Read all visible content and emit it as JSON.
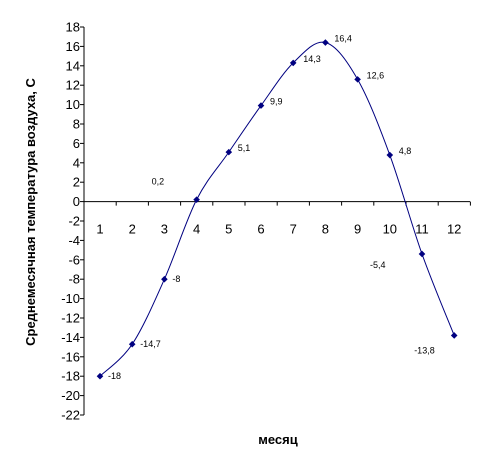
{
  "chart_data": {
    "type": "line",
    "xlabel": "месяц",
    "ylabel": "Среднемесячная температура воздуха, С",
    "x": [
      1,
      2,
      3,
      4,
      5,
      6,
      7,
      8,
      9,
      10,
      11,
      12
    ],
    "values": [
      -18,
      -14.7,
      -8,
      0.2,
      5.1,
      9.9,
      14.3,
      16.4,
      12.6,
      4.8,
      -5.4,
      -13.8
    ],
    "data_labels": [
      "-18",
      "-14,7",
      "-8",
      "0,2",
      "5,1",
      "9,9",
      "14,3",
      "16,4",
      "12,6",
      "4,8",
      "-5,4",
      "-13,8"
    ],
    "ylim": [
      -22,
      18
    ],
    "yticks": [
      18,
      16,
      14,
      12,
      10,
      8,
      6,
      4,
      2,
      0,
      -2,
      -4,
      -6,
      -8,
      -10,
      -12,
      -14,
      -16,
      -18,
      -20,
      -22
    ],
    "grid": false,
    "legend": "none",
    "line_color": "#000080"
  }
}
